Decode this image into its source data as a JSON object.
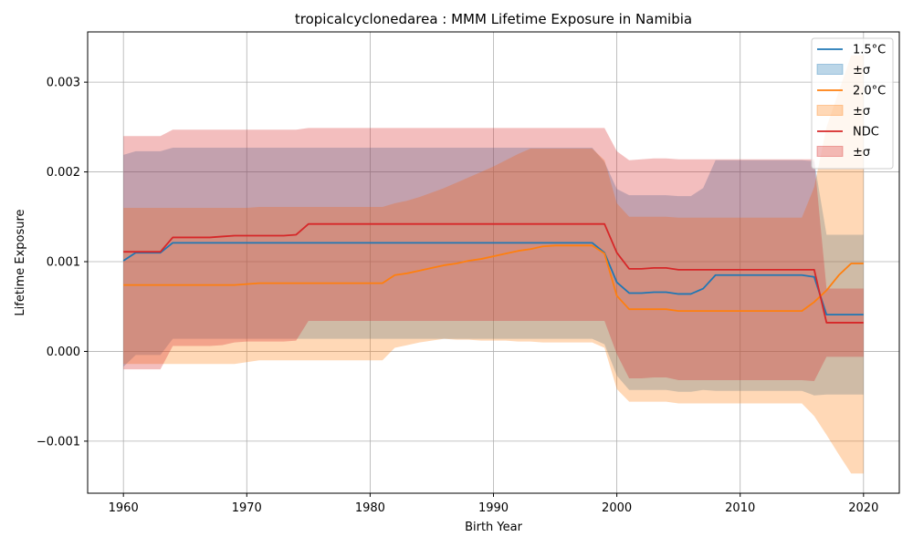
{
  "chart_data": {
    "type": "line",
    "title": "tropicalcyclonedarea : MMM Lifetime Exposure in Namibia",
    "xlabel": "Birth Year",
    "ylabel": "Lifetime Exposure",
    "xlim": [
      1957.1,
      2022.9
    ],
    "ylim": [
      -0.00158,
      0.00356
    ],
    "xticks": [
      1960,
      1970,
      1980,
      1990,
      2000,
      2010,
      2020
    ],
    "xtick_labels": [
      "1960",
      "1970",
      "1980",
      "1990",
      "2000",
      "2010",
      "2020"
    ],
    "yticks": [
      -0.001,
      0.0,
      0.001,
      0.002,
      0.003
    ],
    "ytick_labels": [
      "−0.001",
      "0.000",
      "0.001",
      "0.002",
      "0.003"
    ],
    "grid": true,
    "legend_position": "top-right",
    "x": [
      1960,
      1961,
      1962,
      1963,
      1964,
      1965,
      1966,
      1967,
      1968,
      1969,
      1970,
      1971,
      1972,
      1973,
      1974,
      1975,
      1976,
      1977,
      1978,
      1979,
      1980,
      1981,
      1982,
      1983,
      1984,
      1985,
      1986,
      1987,
      1988,
      1989,
      1990,
      1991,
      1992,
      1993,
      1994,
      1995,
      1996,
      1997,
      1998,
      1999,
      2000,
      2001,
      2002,
      2003,
      2004,
      2005,
      2006,
      2007,
      2008,
      2009,
      2010,
      2011,
      2012,
      2013,
      2014,
      2015,
      2016,
      2017,
      2018,
      2019,
      2020
    ],
    "series": [
      {
        "name": "1.5°C",
        "band_label": "±σ",
        "color": "#1f77b4",
        "values": [
          0.00101,
          0.0011,
          0.0011,
          0.0011,
          0.00121,
          0.00121,
          0.00121,
          0.00121,
          0.00121,
          0.00121,
          0.00121,
          0.00121,
          0.00121,
          0.00121,
          0.00121,
          0.00121,
          0.00121,
          0.00121,
          0.00121,
          0.00121,
          0.00121,
          0.00121,
          0.00121,
          0.00121,
          0.00121,
          0.00121,
          0.00121,
          0.00121,
          0.00121,
          0.00121,
          0.00121,
          0.00121,
          0.00121,
          0.00121,
          0.00121,
          0.00121,
          0.00121,
          0.00121,
          0.00121,
          0.0011,
          0.00077,
          0.00065,
          0.00065,
          0.00066,
          0.00066,
          0.00064,
          0.00064,
          0.0007,
          0.00085,
          0.00085,
          0.00085,
          0.00085,
          0.00085,
          0.00085,
          0.00085,
          0.00085,
          0.00083,
          0.00041,
          0.00041,
          0.00041,
          0.00041
        ],
        "upper": [
          0.00219,
          0.00223,
          0.00223,
          0.00223,
          0.00227,
          0.00227,
          0.00227,
          0.00227,
          0.00227,
          0.00227,
          0.00227,
          0.00227,
          0.00227,
          0.00227,
          0.00227,
          0.00227,
          0.00227,
          0.00227,
          0.00227,
          0.00227,
          0.00227,
          0.00227,
          0.00227,
          0.00227,
          0.00227,
          0.00227,
          0.00227,
          0.00227,
          0.00227,
          0.00227,
          0.00227,
          0.00227,
          0.00227,
          0.00227,
          0.00227,
          0.00227,
          0.00227,
          0.00227,
          0.00227,
          0.00211,
          0.00181,
          0.00174,
          0.00174,
          0.00174,
          0.00174,
          0.00173,
          0.00173,
          0.00182,
          0.00213,
          0.00213,
          0.00213,
          0.00213,
          0.00213,
          0.00213,
          0.00213,
          0.00213,
          0.00212,
          0.0013,
          0.0013,
          0.0013,
          0.0013
        ],
        "lower": [
          -0.00017,
          -4e-05,
          -4e-05,
          -4e-05,
          0.00014,
          0.00014,
          0.00014,
          0.00014,
          0.00014,
          0.00014,
          0.00014,
          0.00014,
          0.00014,
          0.00014,
          0.00014,
          0.00014,
          0.00014,
          0.00014,
          0.00014,
          0.00014,
          0.00014,
          0.00014,
          0.00014,
          0.00014,
          0.00014,
          0.00014,
          0.00014,
          0.00014,
          0.00014,
          0.00014,
          0.00014,
          0.00014,
          0.00014,
          0.00014,
          0.00014,
          0.00014,
          0.00014,
          0.00014,
          0.00014,
          8e-05,
          -0.00027,
          -0.00043,
          -0.00043,
          -0.00043,
          -0.00043,
          -0.00045,
          -0.00045,
          -0.00043,
          -0.00044,
          -0.00044,
          -0.00044,
          -0.00044,
          -0.00044,
          -0.00044,
          -0.00044,
          -0.00044,
          -0.00049,
          -0.00048,
          -0.00048,
          -0.00048,
          -0.00048
        ]
      },
      {
        "name": "2.0°C",
        "band_label": "±σ",
        "color": "#ff7f0e",
        "values": [
          0.00074,
          0.00074,
          0.00074,
          0.00074,
          0.00074,
          0.00074,
          0.00074,
          0.00074,
          0.00074,
          0.00074,
          0.00075,
          0.00076,
          0.00076,
          0.00076,
          0.00076,
          0.00076,
          0.00076,
          0.00076,
          0.00076,
          0.00076,
          0.00076,
          0.00076,
          0.00085,
          0.00087,
          0.0009,
          0.00093,
          0.00096,
          0.00098,
          0.00101,
          0.00103,
          0.00106,
          0.00109,
          0.00112,
          0.00114,
          0.00117,
          0.00118,
          0.00118,
          0.00118,
          0.00118,
          0.00109,
          0.00062,
          0.00047,
          0.00047,
          0.00047,
          0.00047,
          0.00045,
          0.00045,
          0.00045,
          0.00045,
          0.00045,
          0.00045,
          0.00045,
          0.00045,
          0.00045,
          0.00045,
          0.00045,
          0.00055,
          0.00068,
          0.00085,
          0.00098,
          0.00098
        ],
        "upper": [
          0.0016,
          0.0016,
          0.0016,
          0.0016,
          0.0016,
          0.0016,
          0.0016,
          0.0016,
          0.0016,
          0.0016,
          0.0016,
          0.00161,
          0.00161,
          0.00161,
          0.00161,
          0.00161,
          0.00161,
          0.00161,
          0.00161,
          0.00161,
          0.00161,
          0.00161,
          0.00165,
          0.00168,
          0.00172,
          0.00177,
          0.00182,
          0.00188,
          0.00194,
          0.002,
          0.00206,
          0.00213,
          0.0022,
          0.00226,
          0.00226,
          0.00226,
          0.00226,
          0.00226,
          0.00226,
          0.00213,
          0.00165,
          0.0015,
          0.0015,
          0.0015,
          0.0015,
          0.00149,
          0.00149,
          0.00149,
          0.00149,
          0.00149,
          0.00149,
          0.00149,
          0.00149,
          0.00149,
          0.00149,
          0.00149,
          0.00183,
          0.0025,
          0.0029,
          0.0033,
          0.0033
        ],
        "lower": [
          -0.00014,
          -0.00014,
          -0.00014,
          -0.00014,
          -0.00014,
          -0.00014,
          -0.00014,
          -0.00014,
          -0.00014,
          -0.00014,
          -0.00012,
          -0.0001,
          -0.0001,
          -0.0001,
          -0.0001,
          -0.0001,
          -0.0001,
          -0.0001,
          -0.0001,
          -0.0001,
          -0.0001,
          -0.0001,
          4e-05,
          7e-05,
          0.0001,
          0.00012,
          0.00014,
          0.00013,
          0.00013,
          0.00012,
          0.00012,
          0.00012,
          0.00011,
          0.00011,
          0.0001,
          0.0001,
          0.0001,
          0.0001,
          0.0001,
          4e-05,
          -0.00042,
          -0.00056,
          -0.00056,
          -0.00056,
          -0.00056,
          -0.00058,
          -0.00058,
          -0.00058,
          -0.00058,
          -0.00058,
          -0.00058,
          -0.00058,
          -0.00058,
          -0.00058,
          -0.00058,
          -0.00058,
          -0.00072,
          -0.00093,
          -0.00115,
          -0.00136,
          -0.00136
        ]
      },
      {
        "name": "NDC",
        "band_label": "±σ",
        "color": "#d62728",
        "values": [
          0.00111,
          0.00111,
          0.00111,
          0.00111,
          0.00127,
          0.00127,
          0.00127,
          0.00127,
          0.00128,
          0.00129,
          0.00129,
          0.00129,
          0.00129,
          0.00129,
          0.0013,
          0.00142,
          0.00142,
          0.00142,
          0.00142,
          0.00142,
          0.00142,
          0.00142,
          0.00142,
          0.00142,
          0.00142,
          0.00142,
          0.00142,
          0.00142,
          0.00142,
          0.00142,
          0.00142,
          0.00142,
          0.00142,
          0.00142,
          0.00142,
          0.00142,
          0.00142,
          0.00142,
          0.00142,
          0.00142,
          0.0011,
          0.00092,
          0.00092,
          0.00093,
          0.00093,
          0.00091,
          0.00091,
          0.00091,
          0.00091,
          0.00091,
          0.00091,
          0.00091,
          0.00091,
          0.00091,
          0.00091,
          0.00091,
          0.00091,
          0.00032,
          0.00032,
          0.00032,
          0.00032
        ],
        "upper": [
          0.0024,
          0.0024,
          0.0024,
          0.0024,
          0.00247,
          0.00247,
          0.00247,
          0.00247,
          0.00247,
          0.00247,
          0.00247,
          0.00247,
          0.00247,
          0.00247,
          0.00247,
          0.00249,
          0.00249,
          0.00249,
          0.00249,
          0.00249,
          0.00249,
          0.00249,
          0.00249,
          0.00249,
          0.00249,
          0.00249,
          0.00249,
          0.00249,
          0.00249,
          0.00249,
          0.00249,
          0.00249,
          0.00249,
          0.00249,
          0.00249,
          0.00249,
          0.00249,
          0.00249,
          0.00249,
          0.00249,
          0.00223,
          0.00213,
          0.00214,
          0.00215,
          0.00215,
          0.00214,
          0.00214,
          0.00214,
          0.00214,
          0.00214,
          0.00214,
          0.00214,
          0.00214,
          0.00214,
          0.00214,
          0.00214,
          0.00214,
          0.0007,
          0.0007,
          0.0007,
          0.0007
        ],
        "lower": [
          -0.0002,
          -0.0002,
          -0.0002,
          -0.0002,
          6e-05,
          6e-05,
          6e-05,
          6e-05,
          7e-05,
          0.0001,
          0.00011,
          0.00011,
          0.00011,
          0.00011,
          0.00012,
          0.00034,
          0.00034,
          0.00034,
          0.00034,
          0.00034,
          0.00034,
          0.00034,
          0.00034,
          0.00034,
          0.00034,
          0.00034,
          0.00034,
          0.00034,
          0.00034,
          0.00034,
          0.00034,
          0.00034,
          0.00034,
          0.00034,
          0.00034,
          0.00034,
          0.00034,
          0.00034,
          0.00034,
          0.00034,
          -3e-05,
          -0.0003,
          -0.0003,
          -0.00029,
          -0.00029,
          -0.00032,
          -0.00032,
          -0.00032,
          -0.00032,
          -0.00032,
          -0.00032,
          -0.00032,
          -0.00032,
          -0.00032,
          -0.00032,
          -0.00032,
          -0.00033,
          -6e-05,
          -6e-05,
          -6e-05,
          -6e-05
        ]
      }
    ]
  }
}
